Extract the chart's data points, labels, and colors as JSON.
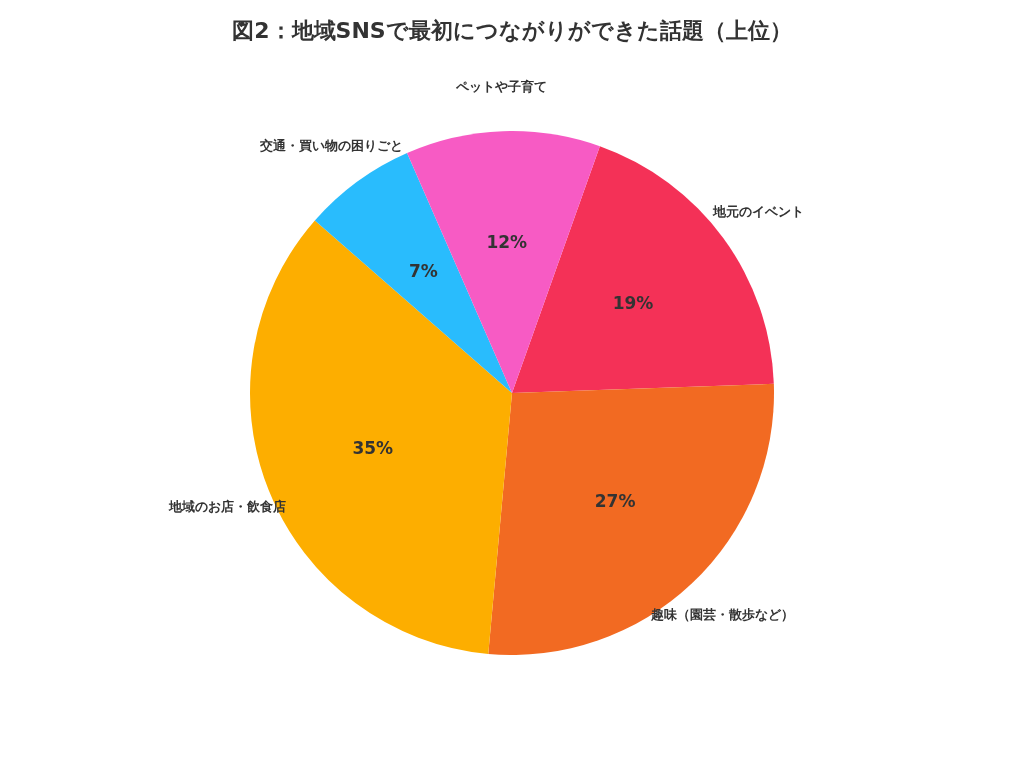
{
  "chart_data": {
    "type": "pie",
    "title": "図2：地域SNSで最初につながりができた話題（上位）",
    "categories": [
      "地元のイベント",
      "趣味（園芸・散歩など）",
      "地域のお店・飲食店",
      "交通・買い物の困りごと",
      "ペットや子育て"
    ],
    "values": [
      19,
      27,
      35,
      7,
      12
    ],
    "colors": [
      "#f43157",
      "#f26a22",
      "#fdae00",
      "#29bcfd",
      "#f75bc4"
    ],
    "value_labels": [
      "19%",
      "27%",
      "35%",
      "7%",
      "12%"
    ],
    "legend": false
  }
}
